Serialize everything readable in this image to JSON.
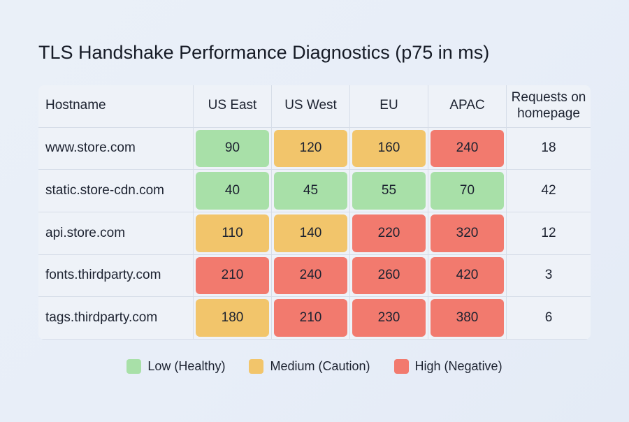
{
  "title": "TLS Handshake Performance Diagnostics (p75 in ms)",
  "table": {
    "columns": [
      "Hostname",
      "US East",
      "US West",
      "EU",
      "APAC",
      "Requests on homepage"
    ],
    "rows": [
      {
        "host": "www.store.com",
        "values": [
          90,
          120,
          160,
          240
        ],
        "colors": [
          "#a8e0a8",
          "#f2c56b",
          "#f2c56b",
          "#f27a6e"
        ],
        "requests": 18
      },
      {
        "host": "static.store-cdn.com",
        "values": [
          40,
          45,
          55,
          70
        ],
        "colors": [
          "#a8e0a8",
          "#a8e0a8",
          "#a8e0a8",
          "#a8e0a8"
        ],
        "requests": 42
      },
      {
        "host": "api.store.com",
        "values": [
          110,
          140,
          220,
          320
        ],
        "colors": [
          "#f2c56b",
          "#f2c56b",
          "#f27a6e",
          "#f27a6e"
        ],
        "requests": 12
      },
      {
        "host": "fonts.thirdparty.com",
        "values": [
          210,
          240,
          260,
          420
        ],
        "colors": [
          "#f27a6e",
          "#f27a6e",
          "#f27a6e",
          "#f27a6e"
        ],
        "requests": 3
      },
      {
        "host": "tags.thirdparty.com",
        "values": [
          180,
          210,
          230,
          380
        ],
        "colors": [
          "#f2c56b",
          "#f27a6e",
          "#f27a6e",
          "#f27a6e"
        ],
        "requests": 6
      }
    ]
  },
  "legend": [
    {
      "label": "Low (Healthy)",
      "color": "#a8e0a8"
    },
    {
      "label": "Medium (Caution)",
      "color": "#f2c56b"
    },
    {
      "label": "High (Negative)",
      "color": "#f27a6e"
    }
  ]
}
